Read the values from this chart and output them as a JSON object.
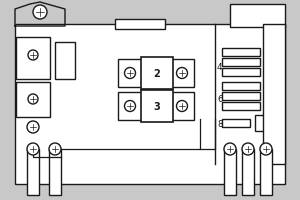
{
  "fig_bg": "#c8c8c8",
  "box_bg": "#ffffff",
  "line_color": "#1a1a1a",
  "lw": 1.0,
  "figsize": [
    3.0,
    2.01
  ],
  "dpi": 100
}
